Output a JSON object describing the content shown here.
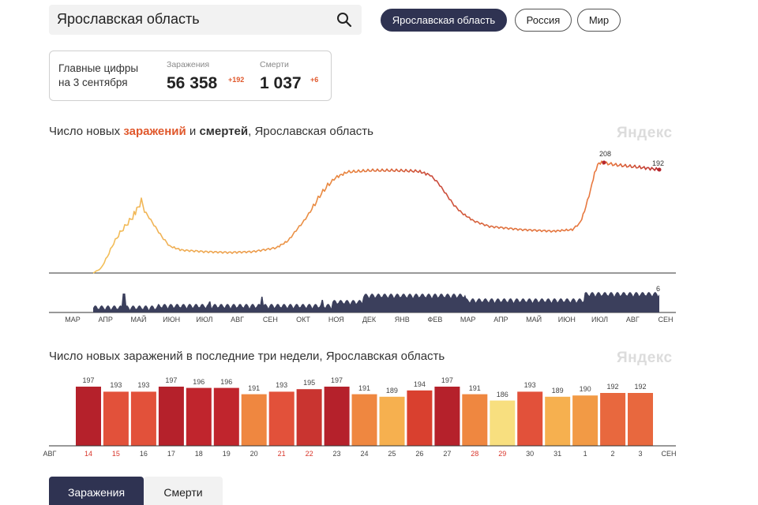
{
  "search": {
    "value": "Ярославская область"
  },
  "regions": [
    {
      "label": "Ярославская область",
      "active": true
    },
    {
      "label": "Россия",
      "active": false
    },
    {
      "label": "Мир",
      "active": false
    }
  ],
  "summary": {
    "title_line1": "Главные цифры",
    "title_line2": "на 3 сентября",
    "infections_label": "Заражения",
    "infections_value": "56 358",
    "infections_delta": "+192",
    "deaths_label": "Смерти",
    "deaths_value": "1 037",
    "deaths_delta": "+6"
  },
  "daily_chart": {
    "title_prefix": "Число новых ",
    "title_infections": "заражений",
    "title_and": " и ",
    "title_deaths": "смертей",
    "title_suffix": ", Ярославская область",
    "brand": "Яндекс",
    "peak_label": "208",
    "last_label": "192",
    "deaths_last_label": "6",
    "months": [
      "МАР",
      "АПР",
      "МАЙ",
      "ИЮН",
      "ИЮЛ",
      "АВГ",
      "СЕН",
      "ОКТ",
      "НОЯ",
      "ДЕК",
      "ЯНВ",
      "ФЕВ",
      "МАР",
      "АПР",
      "МАЙ",
      "ИЮН",
      "ИЮЛ",
      "АВГ",
      "СЕН"
    ]
  },
  "bar_chart": {
    "title": "Число новых заражений в последние три недели, Ярославская область",
    "brand": "Яндекс",
    "axis_left": "АВГ",
    "axis_right": "СЕН"
  },
  "chart_data": {
    "type": "bar",
    "title": "Число новых заражений в последние три недели, Ярославская область",
    "categories": [
      "14",
      "15",
      "16",
      "17",
      "18",
      "19",
      "20",
      "21",
      "22",
      "23",
      "24",
      "25",
      "26",
      "27",
      "28",
      "29",
      "30",
      "31",
      "1",
      "2",
      "3"
    ],
    "values": [
      197,
      193,
      193,
      197,
      196,
      196,
      191,
      193,
      195,
      197,
      191,
      189,
      194,
      197,
      191,
      186,
      193,
      189,
      190,
      192,
      192
    ],
    "weekend": [
      true,
      true,
      false,
      false,
      false,
      false,
      false,
      true,
      true,
      false,
      false,
      false,
      false,
      false,
      true,
      true,
      false,
      false,
      false,
      false,
      false
    ],
    "colors": [
      "#b5212b",
      "#e2513a",
      "#e2513a",
      "#b5212b",
      "#c0252d",
      "#c0252d",
      "#ef8740",
      "#e2513a",
      "#c93430",
      "#b5212b",
      "#ef8740",
      "#f6b04f",
      "#d9402f",
      "#b5212b",
      "#ef8740",
      "#f8df7f",
      "#e2513a",
      "#f6b04f",
      "#f29a45",
      "#e8683e",
      "#e8683e"
    ],
    "ylim": [
      0,
      197
    ]
  },
  "bottom_tabs": [
    {
      "label": "Заражения",
      "active": true
    },
    {
      "label": "Смерти",
      "active": false
    }
  ]
}
